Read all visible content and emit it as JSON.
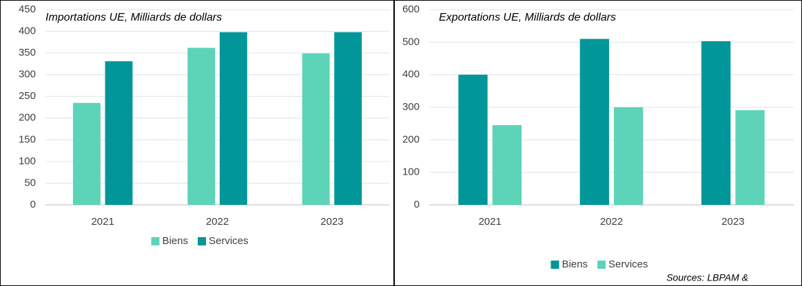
{
  "chart_data": [
    {
      "type": "bar",
      "title": "Importations UE, Milliards de dollars",
      "categories": [
        "2021",
        "2022",
        "2023"
      ],
      "series": [
        {
          "name": "Biens",
          "color": "#5dd3b8",
          "values": [
            235,
            362,
            349
          ]
        },
        {
          "name": "Services",
          "color": "#00969a",
          "values": [
            331,
            398,
            398
          ]
        }
      ],
      "ylim": [
        0,
        450
      ],
      "yticks": [
        0,
        50,
        100,
        150,
        200,
        250,
        300,
        350,
        400,
        450
      ],
      "grid": true,
      "legend": "bottom"
    },
    {
      "type": "bar",
      "title": "Exportations UE, Milliards de dollars",
      "categories": [
        "2021",
        "2022",
        "2023"
      ],
      "series": [
        {
          "name": "Biens",
          "color": "#00969a",
          "values": [
            400,
            510,
            503
          ]
        },
        {
          "name": "Services",
          "color": "#5dd3b8",
          "values": [
            245,
            300,
            291
          ]
        }
      ],
      "ylim": [
        0,
        600
      ],
      "yticks": [
        0,
        100,
        200,
        300,
        400,
        500,
        600
      ],
      "grid": true,
      "legend": "bottom"
    }
  ],
  "source": "Sources: LBPAM &"
}
